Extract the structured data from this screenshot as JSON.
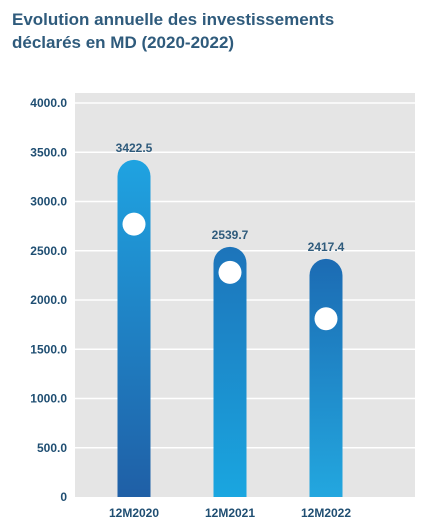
{
  "title_lines": [
    "Evolution annuelle des investissements",
    "déclarés en MD (2020-2022)"
  ],
  "colors": {
    "plot_background": "#e5e5e5",
    "axis_text": "#1f4e72",
    "value_label": "#2f5b7c",
    "gridline": "#ffffff",
    "bars": [
      {
        "top": "#1fa3e1",
        "bottom": "#1f5fa6"
      },
      {
        "top": "#1d74ba",
        "bottom": "#1aa6e0"
      },
      {
        "top": "#1c6bb3",
        "bottom": "#23a7df"
      }
    ]
  },
  "chart_data": {
    "type": "bar",
    "title": "Evolution annuelle des investissements déclarés en MD (2020-2022)",
    "categories": [
      "12M2020",
      "12M2021",
      "12M2022"
    ],
    "values": [
      3422.5,
      2539.7,
      2417.4
    ],
    "value_labels": [
      "3422.5",
      "2539.7",
      "2417.4"
    ],
    "marker_values": [
      2770,
      2280,
      1810
    ],
    "yticks": [
      0,
      500,
      1000,
      1500,
      2000,
      2500,
      3000,
      3500,
      4000
    ],
    "ytick_labels": [
      "0",
      "500.0",
      "1000.0",
      "1500.0",
      "2000.0",
      "2500.0",
      "3000.0",
      "3500.0",
      "4000.0"
    ],
    "ylim": [
      0,
      4000
    ],
    "grid": true,
    "legend": "none"
  }
}
